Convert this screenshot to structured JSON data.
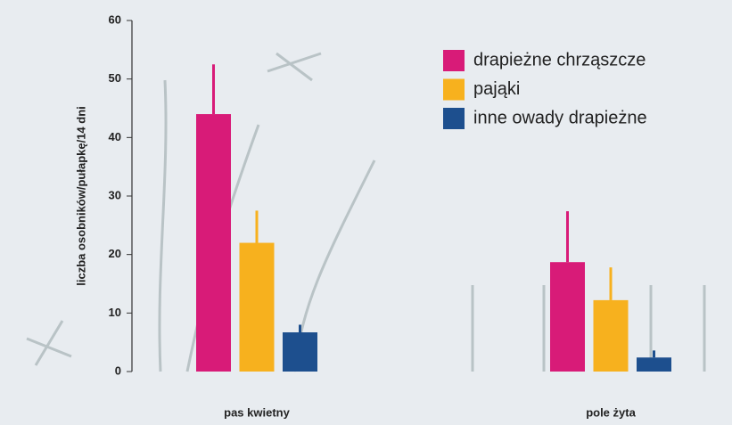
{
  "chart_data": {
    "type": "bar",
    "y_label": "liczba osobników/pułapkę/14 dni",
    "categories": [
      "pas kwietny",
      "pole żyta"
    ],
    "series": [
      {
        "name": "drapieżne chrząszcze",
        "color": "#d81b78",
        "values": [
          44,
          18.7
        ],
        "errors": [
          8.5,
          8.7
        ]
      },
      {
        "name": "pająki",
        "color": "#f7b11e",
        "values": [
          22,
          12.2
        ],
        "errors": [
          5.5,
          5.6
        ]
      },
      {
        "name": "inne owady drapieżne",
        "color": "#1d4f8e",
        "values": [
          6.7,
          2.4
        ],
        "errors": [
          1.3,
          1.2
        ]
      }
    ],
    "ylim": [
      0,
      60
    ],
    "yticks": [
      0,
      10,
      20,
      30,
      40,
      50,
      60
    ]
  }
}
